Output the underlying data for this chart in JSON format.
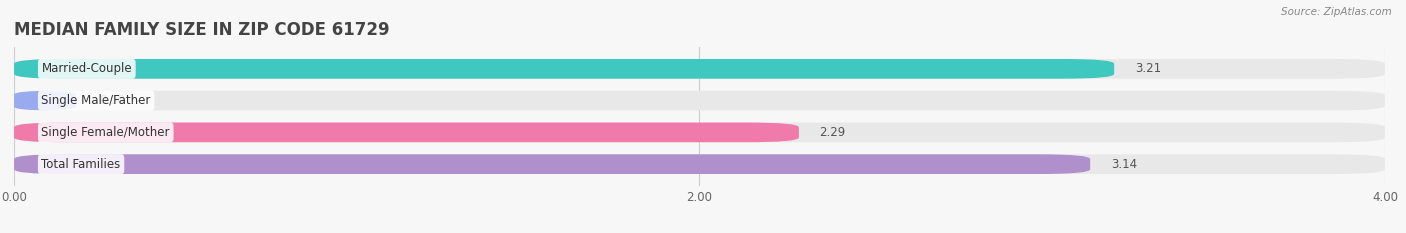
{
  "title": "MEDIAN FAMILY SIZE IN ZIP CODE 61729",
  "source": "Source: ZipAtlas.com",
  "categories": [
    "Married-Couple",
    "Single Male/Father",
    "Single Female/Mother",
    "Total Families"
  ],
  "values": [
    3.21,
    0.0,
    2.29,
    3.14
  ],
  "bar_colors": [
    "#3ec8c0",
    "#99aaee",
    "#f07aaa",
    "#b090cc"
  ],
  "bar_bg_color": "#e8e8e8",
  "xlim": [
    0,
    4.0
  ],
  "xticks": [
    0.0,
    2.0,
    4.0
  ],
  "bar_height": 0.62,
  "bar_gap": 1.0,
  "label_fontsize": 8.5,
  "value_fontsize": 8.5,
  "title_fontsize": 12,
  "background_color": "#f7f7f7",
  "label_bg_color": "#ffffff"
}
